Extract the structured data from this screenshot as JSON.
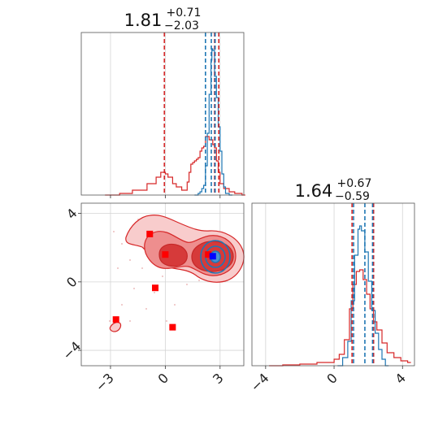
{
  "colors": {
    "red": "#d62728",
    "blue": "#1f77b4",
    "marker_red": "#ff0000",
    "marker_blue": "#0000ff",
    "fill_light": "#f6c4c4",
    "fill_mid": "#ee8e8e",
    "fill_dark": "#d63a3a"
  },
  "chart_data": [
    {
      "type": "area",
      "panel": "top-left",
      "title": {
        "value": "1.81",
        "upper": "+0.71",
        "lower": "−2.03"
      },
      "xlim": [
        -4.6,
        4.3
      ],
      "grid": true,
      "x_ticks": [
        -3,
        0,
        3
      ],
      "red_vlines": [
        -0.05,
        2.7,
        2.93
      ],
      "blue_vlines": [
        2.2,
        2.52,
        2.73
      ],
      "series": [
        {
          "color": "red",
          "x": [
            -3.3,
            -2.5,
            -1.8,
            -1.0,
            -0.5,
            -0.25,
            0.0,
            0.15,
            0.4,
            0.6,
            0.9,
            1.2,
            1.3,
            1.4,
            1.5,
            1.6,
            1.7,
            1.8,
            1.9,
            2.0,
            2.1,
            2.2,
            2.3,
            2.4,
            2.5,
            2.6,
            2.7,
            2.8,
            2.9,
            3.0,
            3.2,
            3.5,
            3.8,
            4.2
          ],
          "y": [
            0.0,
            0.01,
            0.03,
            0.07,
            0.11,
            0.14,
            0.13,
            0.11,
            0.07,
            0.05,
            0.03,
            0.08,
            0.14,
            0.19,
            0.2,
            0.21,
            0.22,
            0.23,
            0.27,
            0.29,
            0.3,
            0.36,
            0.36,
            0.34,
            0.34,
            0.31,
            0.29,
            0.21,
            0.14,
            0.07,
            0.04,
            0.02,
            0.01,
            0.0
          ]
        },
        {
          "color": "blue",
          "x": [
            1.6,
            1.8,
            1.9,
            2.0,
            2.1,
            2.2,
            2.3,
            2.4,
            2.5,
            2.55,
            2.6,
            2.7,
            2.8,
            2.9,
            3.0,
            3.1,
            3.2,
            3.3,
            3.5
          ],
          "y": [
            0.0,
            0.01,
            0.02,
            0.04,
            0.06,
            0.18,
            0.38,
            0.62,
            0.83,
            0.9,
            0.89,
            0.73,
            0.6,
            0.42,
            0.27,
            0.13,
            0.05,
            0.01,
            0.0
          ]
        }
      ]
    },
    {
      "type": "scatter",
      "panel": "bottom-left",
      "xlim": [
        -4.6,
        4.3
      ],
      "ylim": [
        -4.9,
        4.6
      ],
      "grid": true,
      "x_ticks": [
        -3,
        0,
        3
      ],
      "y_ticks": [
        -4,
        0,
        4
      ],
      "red_markers": [
        {
          "x": -0.85,
          "y": 2.8
        },
        {
          "x": 0.0,
          "y": 1.6
        },
        {
          "x": -0.55,
          "y": -0.35
        },
        {
          "x": -2.7,
          "y": -2.2
        },
        {
          "x": 0.4,
          "y": -2.65
        },
        {
          "x": 2.35,
          "y": 1.6
        }
      ],
      "blue_marker": {
        "x": 2.6,
        "y": 1.5
      }
    },
    {
      "type": "area",
      "panel": "bottom-right",
      "title": {
        "value": "1.64",
        "upper": "+0.67",
        "lower": "−0.59"
      },
      "xlim": [
        -4.8,
        4.7
      ],
      "grid": true,
      "x_ticks": [
        -4,
        0,
        4
      ],
      "red_vlines": [
        1.05,
        2.31
      ],
      "blue_vlines": [
        1.14,
        1.8,
        2.25
      ],
      "series": [
        {
          "color": "red",
          "x": [
            -3.8,
            -3.0,
            -2.0,
            -1.0,
            -0.5,
            0.0,
            0.3,
            0.6,
            0.9,
            1.1,
            1.3,
            1.5,
            1.7,
            1.9,
            2.1,
            2.3,
            2.5,
            2.8,
            3.1,
            3.5,
            3.9,
            4.3
          ],
          "y": [
            0.0,
            0.005,
            0.01,
            0.02,
            0.02,
            0.04,
            0.07,
            0.16,
            0.35,
            0.5,
            0.58,
            0.59,
            0.53,
            0.44,
            0.35,
            0.27,
            0.22,
            0.14,
            0.08,
            0.05,
            0.03,
            0.02
          ]
        },
        {
          "color": "blue",
          "x": [
            0.2,
            0.5,
            0.8,
            1.0,
            1.2,
            1.4,
            1.5,
            1.6,
            1.8,
            2.0,
            2.2,
            2.4,
            2.6,
            2.8,
            3.0
          ],
          "y": [
            0.0,
            0.05,
            0.15,
            0.4,
            0.68,
            0.84,
            0.86,
            0.83,
            0.7,
            0.52,
            0.34,
            0.2,
            0.1,
            0.04,
            0.0
          ]
        }
      ]
    }
  ]
}
